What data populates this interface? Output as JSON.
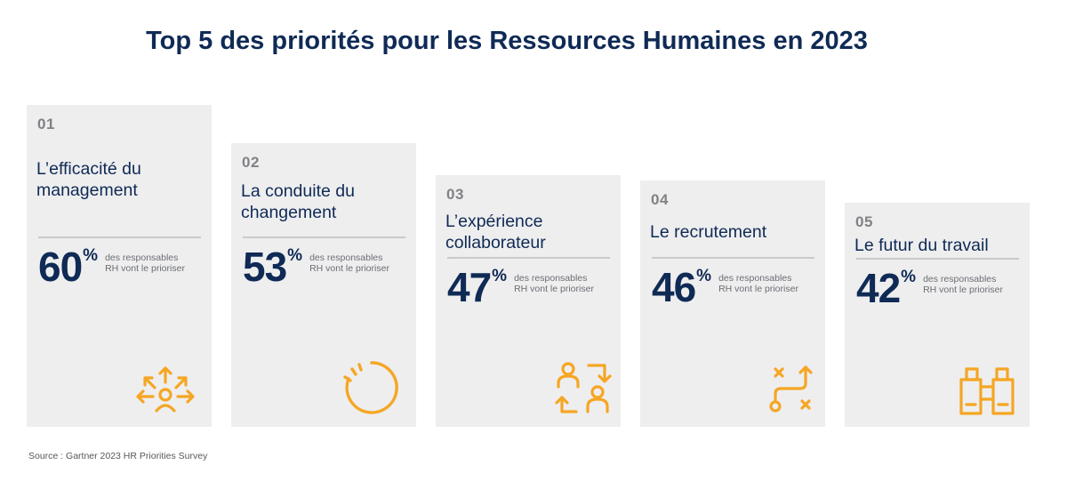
{
  "title": "Top 5 des priorités pour les Ressources Humaines en 2023",
  "colors": {
    "navy": "#0f2a55",
    "accent": "#f5a623",
    "card_bg": "#eeeeef"
  },
  "cards": [
    {
      "number": "01",
      "label": "L’efficacité du management",
      "value": "60",
      "unit": "%",
      "description": "des responsables RH vont le prioriser",
      "icon": "arrows-outward-person-icon"
    },
    {
      "number": "02",
      "label": "La conduite du changement",
      "value": "53",
      "unit": "%",
      "description": "des responsables RH vont le prioriser",
      "icon": "circular-arrow-icon"
    },
    {
      "number": "03",
      "label": "L’expérience collaborateur",
      "value": "47",
      "unit": "%",
      "description": "des responsables RH vont le prioriser",
      "icon": "people-exchange-icon"
    },
    {
      "number": "04",
      "label": "Le recrutement",
      "value": "46",
      "unit": "%",
      "description": "des responsables RH vont le prioriser",
      "icon": "strategy-path-icon"
    },
    {
      "number": "05",
      "label": "Le futur du travail",
      "value": "42",
      "unit": "%",
      "description": "des responsables RH vont le prioriser",
      "icon": "binoculars-icon"
    }
  ],
  "source": "Source : Gartner 2023 HR Priorities Survey"
}
